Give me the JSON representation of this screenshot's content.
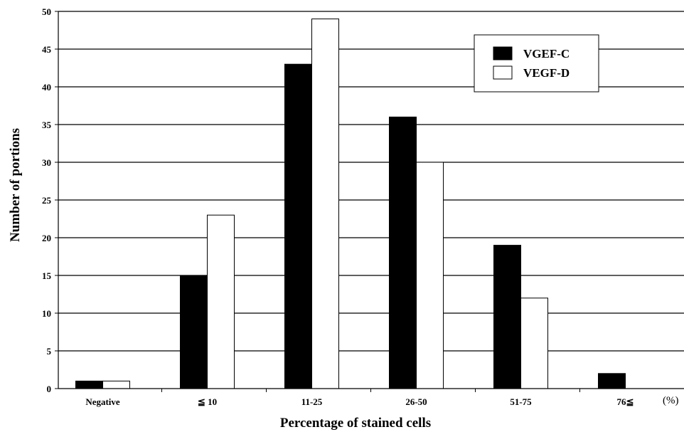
{
  "chart_data": {
    "type": "bar",
    "xlabel": "Percentage of stained cells",
    "ylabel": "Number of portions",
    "x_unit": "(%)",
    "categories": [
      "Negative",
      "≦ 10",
      "11-25",
      "26-50",
      "51-75",
      "76≦"
    ],
    "series": [
      {
        "name": "VGEF-C",
        "values": [
          1,
          15,
          43,
          36,
          19,
          2
        ],
        "color": "#000000"
      },
      {
        "name": "VEGF-D",
        "values": [
          1,
          23,
          49,
          30,
          12,
          0
        ],
        "color": "#ffffff"
      }
    ],
    "ylim": [
      0,
      50
    ],
    "yticks": [
      0,
      5,
      10,
      15,
      20,
      25,
      30,
      35,
      40,
      45,
      50
    ],
    "grid": "horizontal",
    "legend": "top-right"
  }
}
